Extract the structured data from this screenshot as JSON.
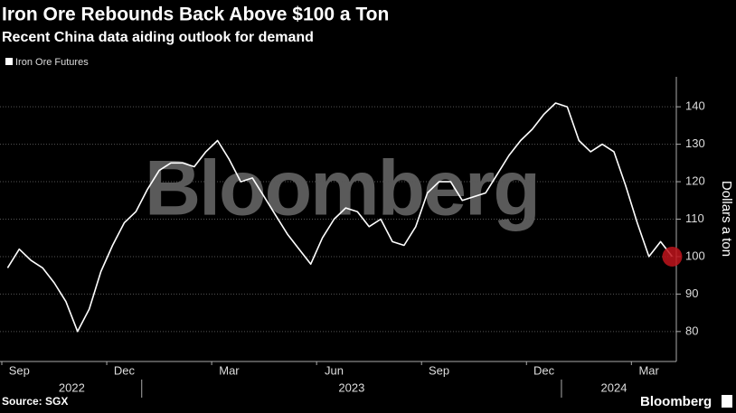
{
  "chart_data": {
    "type": "line",
    "title": "Iron Ore Rebounds Back Above $100 a Ton",
    "subtitle": "Recent China data aiding outlook for demand",
    "ylabel": "Dollars a ton",
    "source": "Source: SGX",
    "watermark": "Bloomberg",
    "brand": "Bloomberg",
    "x": [
      "2022-09",
      "2022-09",
      "2022-09",
      "2022-10",
      "2022-10",
      "2022-10",
      "2022-11",
      "2022-11",
      "2022-11",
      "2022-12",
      "2022-12",
      "2022-12",
      "2023-01",
      "2023-01",
      "2023-01",
      "2023-02",
      "2023-02",
      "2023-02",
      "2023-03",
      "2023-03",
      "2023-03",
      "2023-04",
      "2023-04",
      "2023-04",
      "2023-05",
      "2023-05",
      "2023-05",
      "2023-06",
      "2023-06",
      "2023-06",
      "2023-07",
      "2023-07",
      "2023-07",
      "2023-08",
      "2023-08",
      "2023-08",
      "2023-09",
      "2023-09",
      "2023-09",
      "2023-10",
      "2023-10",
      "2023-10",
      "2023-11",
      "2023-11",
      "2023-11",
      "2023-12",
      "2023-12",
      "2023-12",
      "2024-01",
      "2024-01",
      "2024-01",
      "2024-02",
      "2024-02",
      "2024-02",
      "2024-03",
      "2024-03",
      "2024-03",
      "2024-04"
    ],
    "series": [
      {
        "name": "Iron Ore Futures",
        "color": "#ffffff",
        "values": [
          97,
          102,
          99,
          97,
          93,
          88,
          80,
          86,
          96,
          103,
          109,
          112,
          118,
          123,
          125,
          125,
          124,
          128,
          131,
          126,
          120,
          121,
          116,
          111,
          106,
          102,
          98,
          105,
          110,
          113,
          112,
          108,
          110,
          104,
          103,
          108,
          117,
          120,
          120,
          115,
          116,
          117,
          122,
          127,
          131,
          134,
          138,
          141,
          140,
          131,
          128,
          130,
          128,
          119,
          109,
          100,
          104,
          100
        ]
      }
    ],
    "xlim": [
      "2022-09",
      "2024-03"
    ],
    "xticks": [
      {
        "value": "2022-09",
        "label": "Sep"
      },
      {
        "value": "2022-12",
        "label": "Dec"
      },
      {
        "value": "2023-03",
        "label": "Mar"
      },
      {
        "value": "2023-06",
        "label": "Jun"
      },
      {
        "value": "2023-09",
        "label": "Sep"
      },
      {
        "value": "2023-12",
        "label": "Dec"
      },
      {
        "value": "2024-03",
        "label": "Mar"
      }
    ],
    "years": [
      "2022",
      "2023",
      "2024"
    ],
    "ylim": [
      72,
      148
    ],
    "yticks": [
      80,
      90,
      100,
      110,
      120,
      130,
      140
    ],
    "grid": true,
    "highlight_last": true,
    "highlight_color": "#c0141c"
  }
}
